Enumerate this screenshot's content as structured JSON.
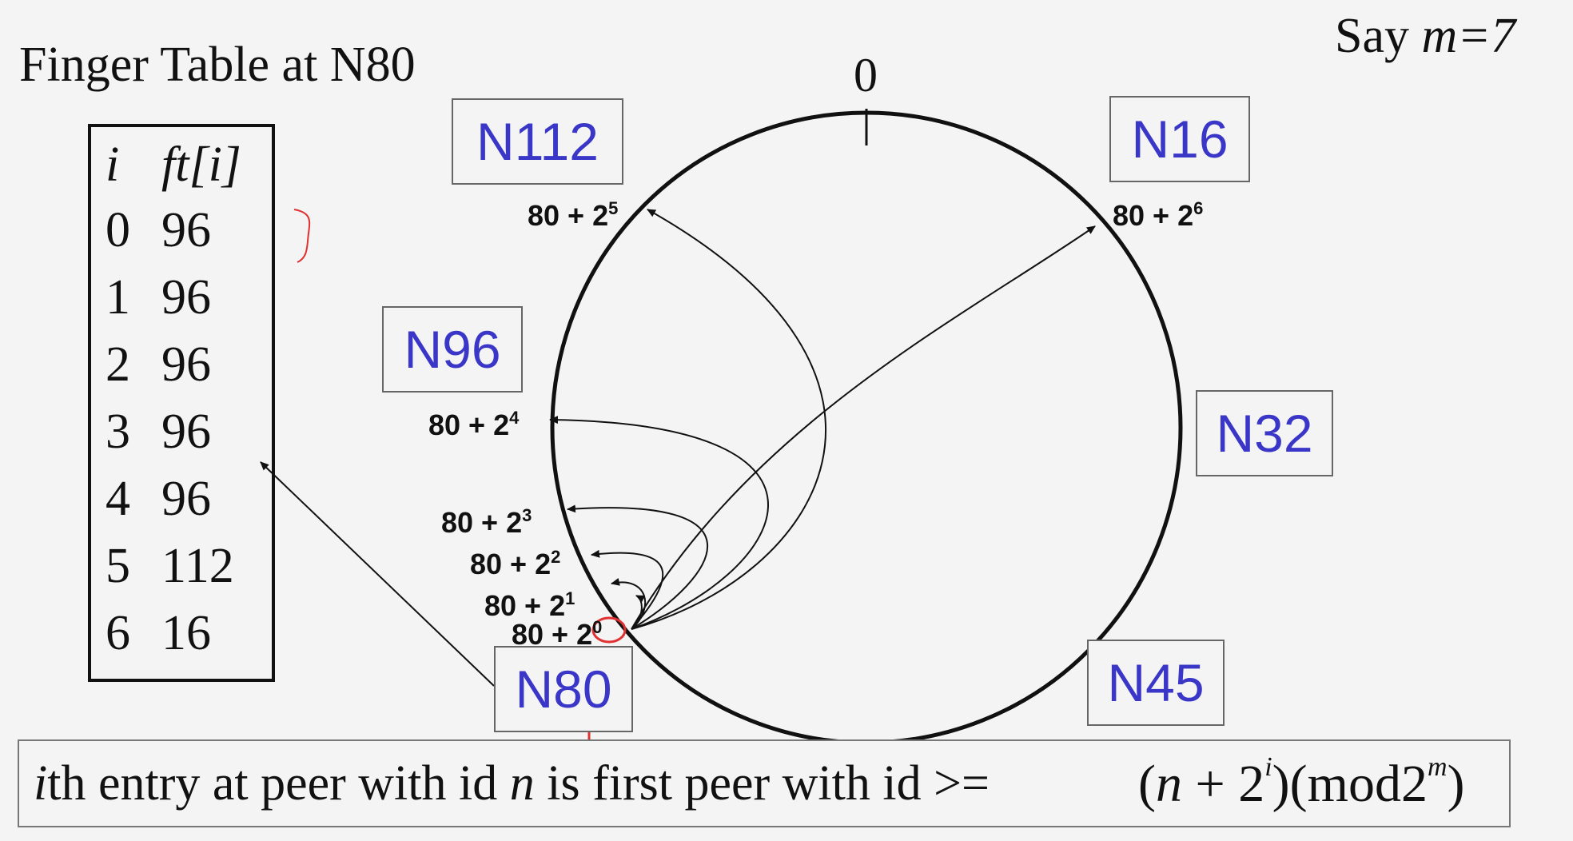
{
  "title": "Finger Table at N80",
  "say": {
    "prefix": "Say ",
    "var": "m",
    "value": "=7"
  },
  "finger_table": {
    "header_i": "i",
    "header_ft": "ft[i]",
    "rows": [
      {
        "i": "0",
        "ft": "96"
      },
      {
        "i": "1",
        "ft": "96"
      },
      {
        "i": "2",
        "ft": "96"
      },
      {
        "i": "3",
        "ft": "96"
      },
      {
        "i": "4",
        "ft": "96"
      },
      {
        "i": "5",
        "ft": "112"
      },
      {
        "i": "6",
        "ft": "16"
      }
    ]
  },
  "ring": {
    "zero_label": "0",
    "nodes": [
      "N112",
      "N16",
      "N96",
      "N32",
      "N80",
      "N45"
    ]
  },
  "pointers": [
    {
      "base": "80 + 2",
      "exp": "0"
    },
    {
      "base": "80 + 2",
      "exp": "1"
    },
    {
      "base": "80 + 2",
      "exp": "2"
    },
    {
      "base": "80 + 2",
      "exp": "3"
    },
    {
      "base": "80 + 2",
      "exp": "4"
    },
    {
      "base": "80 + 2",
      "exp": "5"
    },
    {
      "base": "80 + 2",
      "exp": "6"
    }
  ],
  "formula": {
    "i_var": "i",
    "part1": "th entry at peer with id ",
    "n_var": "n",
    "part2": " is first peer with id >= ",
    "math": {
      "open": "(",
      "n": "n",
      "plus": " + 2",
      "i_exp": "i",
      "mid": ")(mod2",
      "m_exp": "m",
      "close": ")"
    }
  },
  "colors": {
    "node_text": "#3a36c8",
    "annotation": "#e03030"
  }
}
